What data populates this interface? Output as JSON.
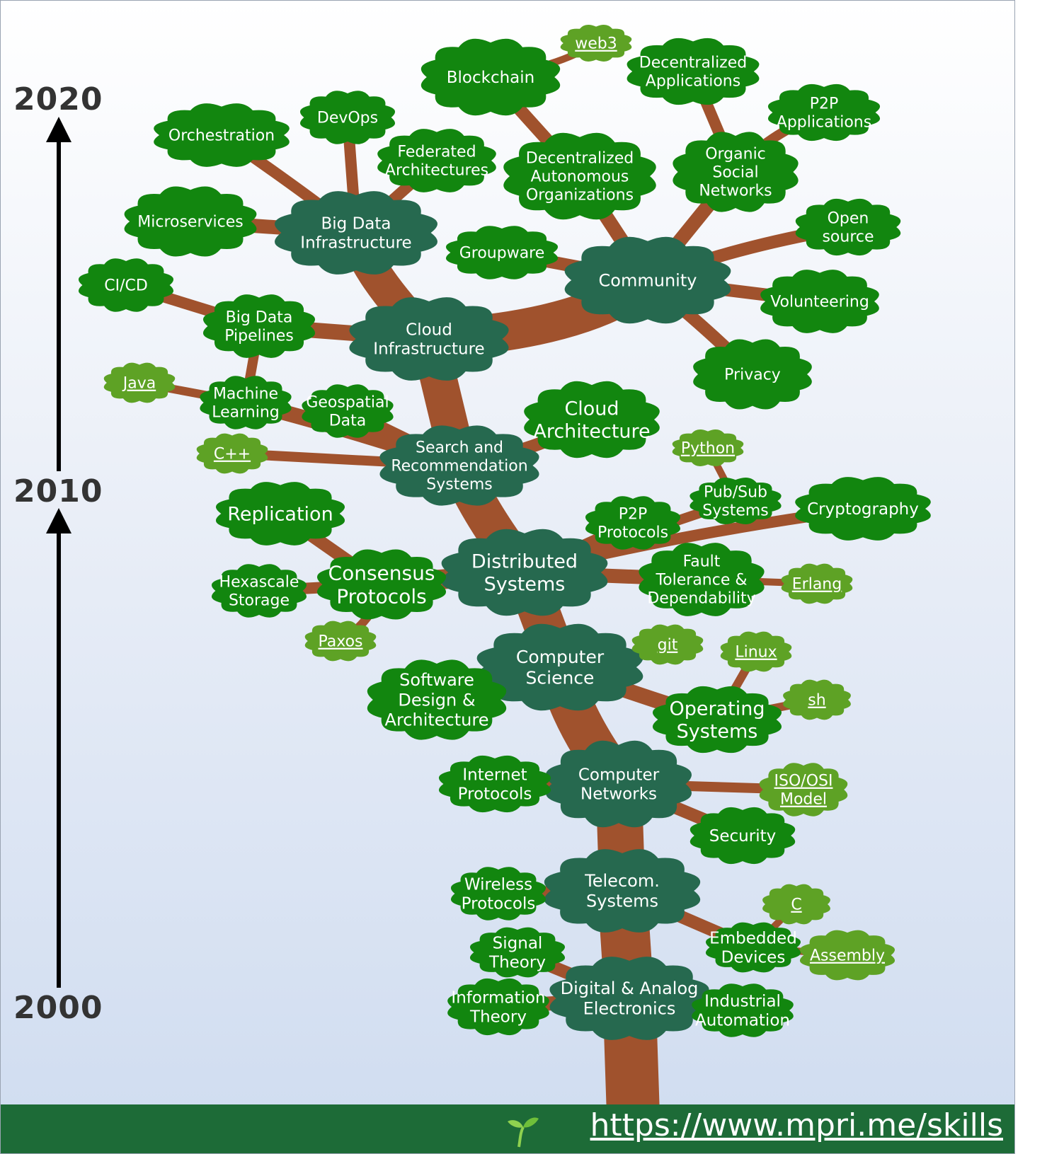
{
  "colors": {
    "branch": "#a0522d",
    "trunk_node": "#26694f",
    "leaf_node": "#12860f",
    "language_node": "#5ea225",
    "footer": "#1d6b37"
  },
  "timeline": {
    "y2020": "2020",
    "y2010": "2010",
    "y2000": "2000"
  },
  "nodes": {
    "digital_analog": "Digital & Analog\nElectronics",
    "telecom": "Telecom.\nSystems",
    "networks": "Computer\nNetworks",
    "cs": "Computer\nScience",
    "distributed": "Distributed\nSystems",
    "search": "Search and\nRecommendation\nSystems",
    "cloud_infra": "Cloud\nInfrastructure",
    "bigdata_infra": "Big Data\nInfrastructure",
    "community": "Community",
    "info_theory": "Information\nTheory",
    "signal_theory": "Signal\nTheory",
    "industrial": "Industrial\nAutomation",
    "embedded": "Embedded\nDevices",
    "wireless": "Wireless\nProtocols",
    "internet_protocols": "Internet\nProtocols",
    "security": "Security",
    "sw_design": "Software\nDesign &\nArchitecture",
    "os": "Operating\nSystems",
    "replication": "Replication",
    "consensus": "Consensus\nProtocols",
    "hexascale": "Hexascale\nStorage",
    "p2p_protocols": "P2P\nProtocols",
    "pubsub": "Pub/Sub\nSystems",
    "cryptography": "Cryptography",
    "fault_tolerance": "Fault\nTolerance &\nDependability",
    "cloud_arch": "Cloud\nArchitecture",
    "machine_learning": "Machine\nLearning",
    "geospatial": "Geospatial\nData",
    "bigdata_pipelines": "Big Data\nPipelines",
    "cicd": "CI/CD",
    "microservices": "Microservices",
    "orchestration": "Orchestration",
    "devops": "DevOps",
    "federated": "Federated\nArchitectures",
    "groupware": "Groupware",
    "blockchain": "Blockchain",
    "dao": "Decentralized\nAutonomous\nOrganizations",
    "dapps": "Decentralized\nApplications",
    "organic_social": "Organic\nSocial\nNetworks",
    "p2p_apps": "P2P\nApplications",
    "open_source": "Open\nsource",
    "volunteering": "Volunteering",
    "privacy": "Privacy",
    "web3": "web3",
    "python": "Python",
    "erlang": "Erlang",
    "git": "git",
    "linux": "Linux",
    "sh": "sh",
    "iso_osi": "ISO/OSI\nModel",
    "c": "C",
    "assembly": "Assembly",
    "java": "Java",
    "cpp": "C++",
    "paxos": "Paxos"
  },
  "footer": {
    "url": "https://www.mpri.me/skills",
    "icon": "sprout-icon"
  }
}
